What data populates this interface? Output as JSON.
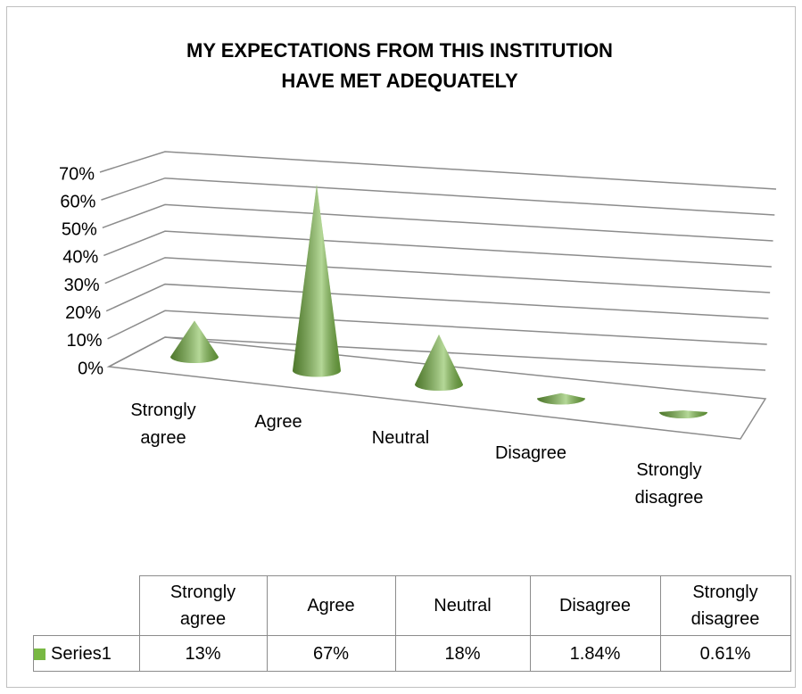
{
  "chart_data": {
    "type": "cone3d",
    "title": "MY EXPECTATIONS FROM THIS INSTITUTION HAVE MET ADEQUATELY",
    "categories": [
      "Strongly agree",
      "Agree",
      "Neutral",
      "Disagree",
      "Strongly disagree"
    ],
    "series": [
      {
        "name": "Series1",
        "color": "#78b843",
        "values": [
          13,
          67,
          18,
          1.84,
          0.61
        ],
        "value_labels": [
          "13%",
          "67%",
          "18%",
          "1.84%",
          "0.61%"
        ]
      }
    ],
    "ylim": [
      0,
      70
    ],
    "yticks": [
      {
        "value": 0,
        "label": "0%"
      },
      {
        "value": 10,
        "label": "10%"
      },
      {
        "value": 20,
        "label": "20%"
      },
      {
        "value": 30,
        "label": "30%"
      },
      {
        "value": 40,
        "label": "40%"
      },
      {
        "value": 50,
        "label": "50%"
      },
      {
        "value": 60,
        "label": "60%"
      },
      {
        "value": 70,
        "label": "70%"
      }
    ],
    "grid": true,
    "data_table": true
  }
}
